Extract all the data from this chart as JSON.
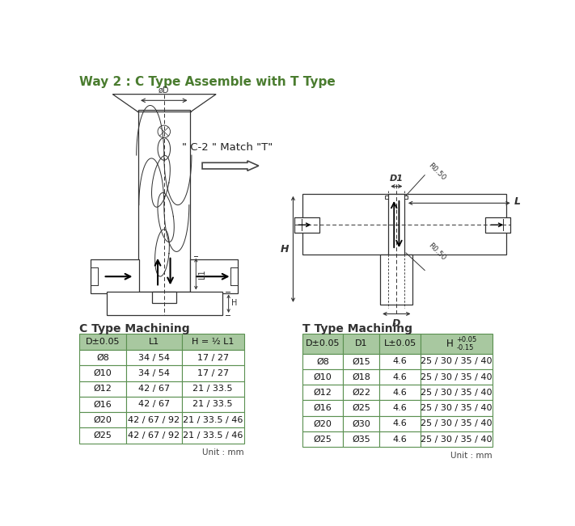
{
  "title": "Way 2 : C Type Assemble with T Type",
  "title_color": "#4a7c2f",
  "bg_color": "#ffffff",
  "c_type_title": "C Type Machining",
  "t_type_title": "T Type Machining",
  "c_headers": [
    "D±0.05",
    "L1",
    "H = ½ L1"
  ],
  "c_rows": [
    [
      "Ø8",
      "34 / 54",
      "17 / 27"
    ],
    [
      "Ø10",
      "34 / 54",
      "17 / 27"
    ],
    [
      "Ø12",
      "42 / 67",
      "21 / 33.5"
    ],
    [
      "Ø16",
      "42 / 67",
      "21 / 33.5"
    ],
    [
      "Ø20",
      "42 / 67 / 92",
      "21 / 33.5 / 46"
    ],
    [
      "Ø25",
      "42 / 67 / 92",
      "21 / 33.5 / 46"
    ]
  ],
  "t_headers": [
    "D±0.05",
    "D1",
    "L±0.05",
    "H"
  ],
  "t_rows": [
    [
      "Ø8",
      "Ø15",
      "4.6",
      "25 / 30 / 35 / 40"
    ],
    [
      "Ø10",
      "Ø18",
      "4.6",
      "25 / 30 / 35 / 40"
    ],
    [
      "Ø12",
      "Ø22",
      "4.6",
      "25 / 30 / 35 / 40"
    ],
    [
      "Ø16",
      "Ø25",
      "4.6",
      "25 / 30 / 35 / 40"
    ],
    [
      "Ø20",
      "Ø30",
      "4.6",
      "25 / 30 / 35 / 40"
    ],
    [
      "Ø25",
      "Ø35",
      "4.6",
      "25 / 30 / 35 / 40"
    ]
  ],
  "header_bg": "#a8c8a0",
  "border_color": "#5a9050",
  "unit_text": "Unit : mm",
  "match_text": "\" C-2 \" Match \"T\"",
  "lc": "#333333",
  "lw": 0.9
}
